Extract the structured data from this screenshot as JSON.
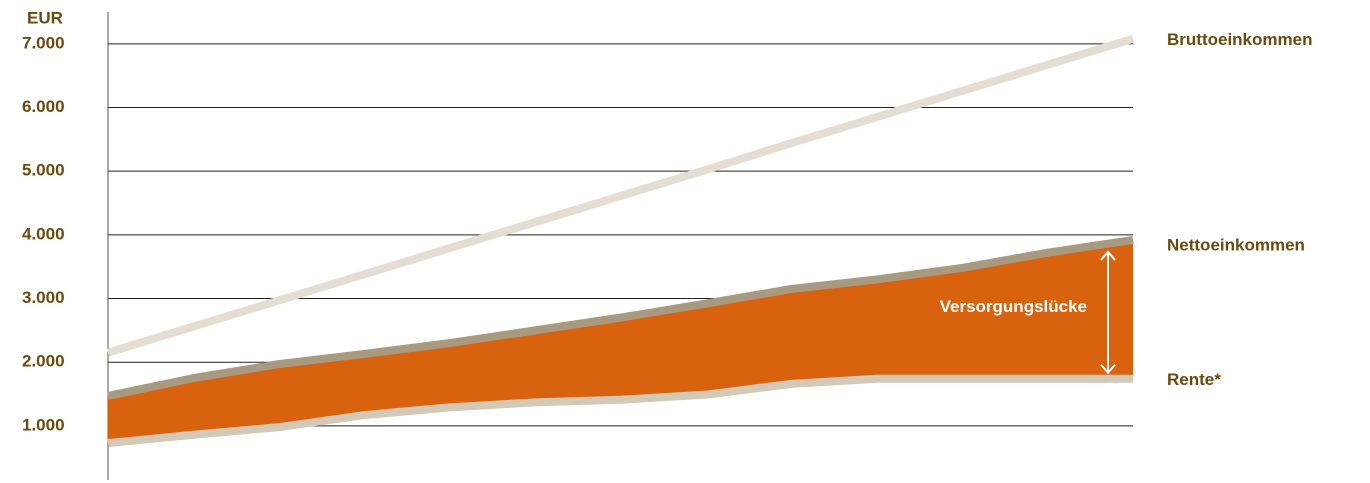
{
  "chart_data": {
    "type": "area-line",
    "y_label": "EUR",
    "annotation": "Versorgungslücke",
    "categories": [
      null,
      null,
      null,
      null,
      null,
      null,
      null,
      null,
      null,
      null,
      null,
      null,
      null
    ],
    "series": [
      {
        "name": "Bruttoeinkommen",
        "color": "#e4ddd2",
        "values": [
          2150,
          2560,
          2970,
          3380,
          3790,
          4200,
          4610,
          5020,
          5440,
          5850,
          6260,
          6670,
          7080
        ]
      },
      {
        "name": "Nettoeinkommen",
        "color": "#a89a80",
        "values": [
          1470,
          1750,
          1970,
          2130,
          2300,
          2500,
          2700,
          2920,
          3150,
          3300,
          3480,
          3720,
          3920
        ]
      },
      {
        "name": "Rente*",
        "color": "#d4c8b6",
        "values": [
          730,
          860,
          980,
          1170,
          1290,
          1370,
          1410,
          1490,
          1660,
          1740,
          1740,
          1740,
          1740
        ]
      }
    ],
    "gap_color": "#d9620f",
    "ylim": [
      150,
      7500
    ],
    "yticks": [
      {
        "value": 1000,
        "label": "1.000"
      },
      {
        "value": 2000,
        "label": "2.000"
      },
      {
        "value": 3000,
        "label": "3.000"
      },
      {
        "value": 4000,
        "label": "4.000"
      },
      {
        "value": 5000,
        "label": "5.000"
      },
      {
        "value": 6000,
        "label": "6.000"
      },
      {
        "value": 7000,
        "label": "7.000"
      }
    ],
    "grid": true
  }
}
